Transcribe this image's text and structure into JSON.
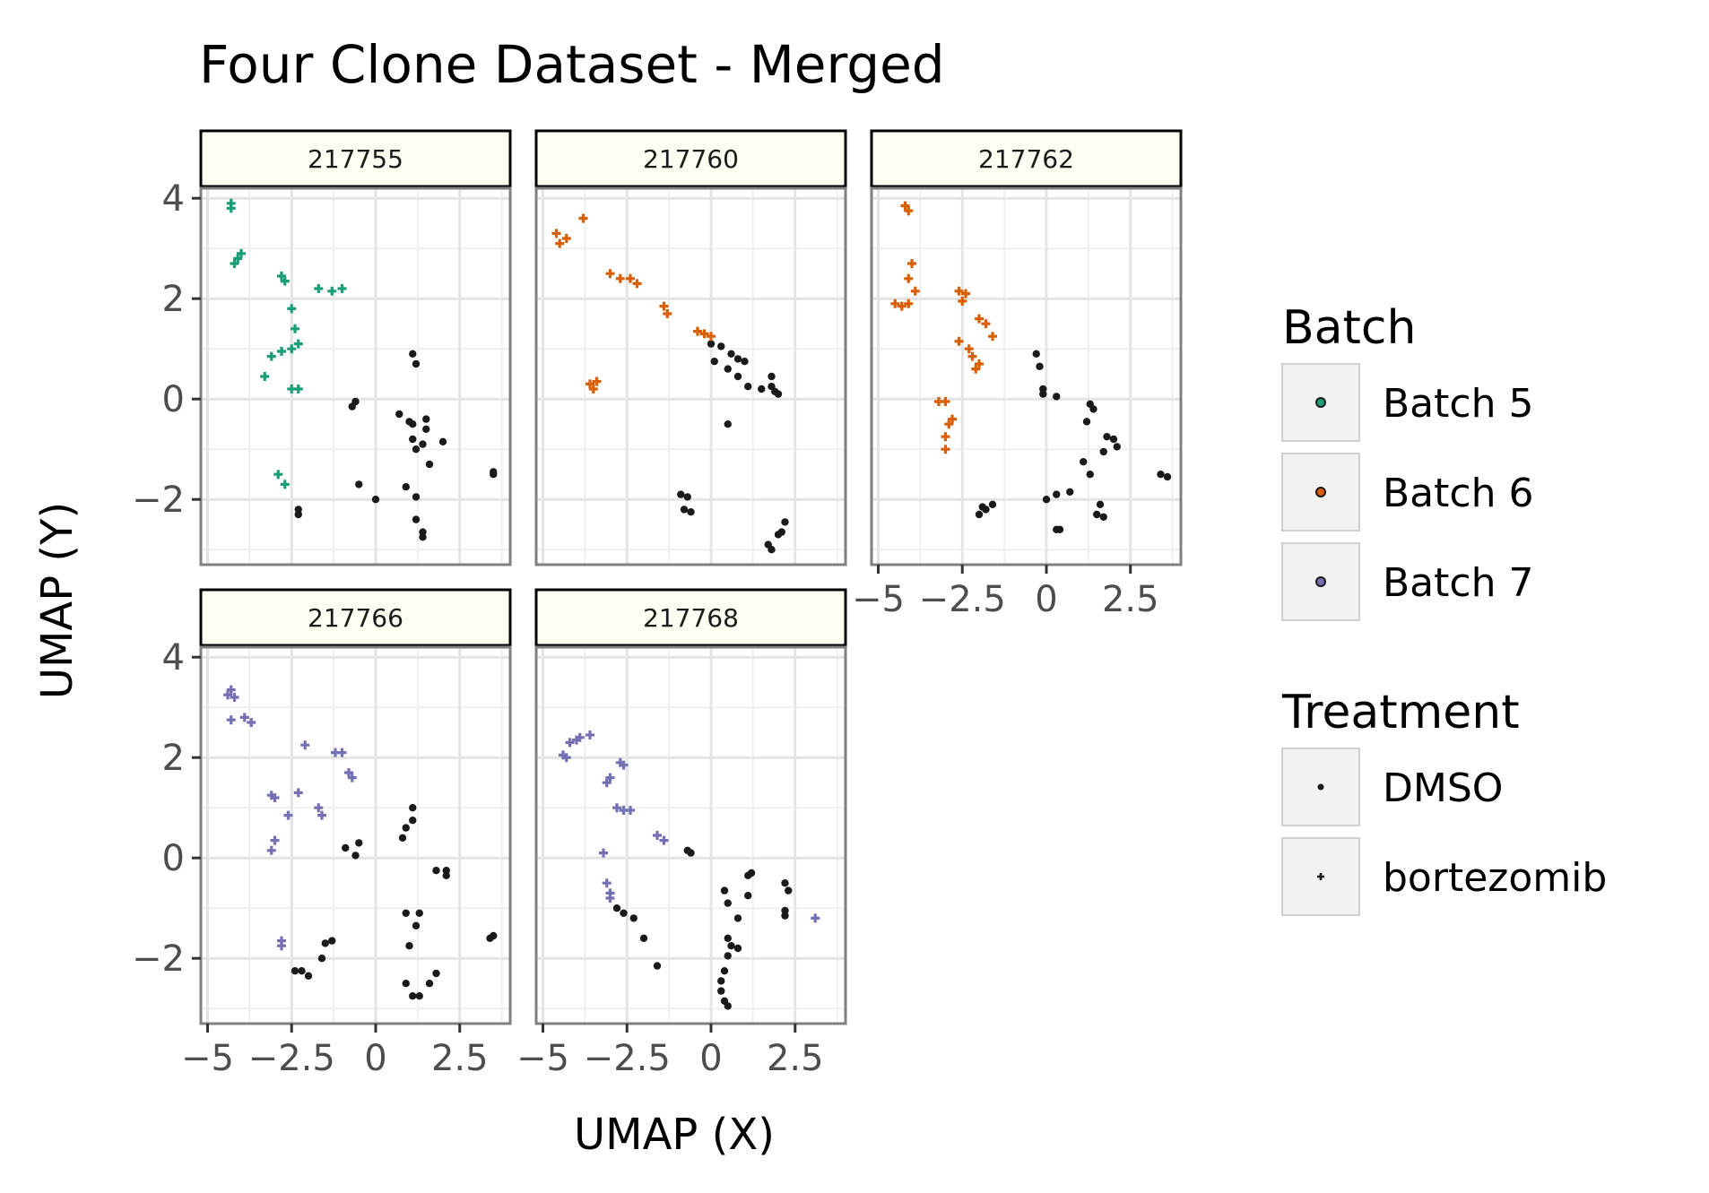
{
  "chart_data": {
    "type": "scatter",
    "title": "Four Clone Dataset - Merged",
    "xlabel": "UMAP (X)",
    "ylabel": "UMAP (Y)",
    "xlim": [
      -5.2,
      4.0
    ],
    "ylim": [
      -3.3,
      4.2
    ],
    "x_ticks": [
      -5,
      -2.5,
      0,
      2.5
    ],
    "x_tick_labels": [
      "−5",
      "−2.5",
      "0",
      "2.5"
    ],
    "y_ticks": [
      -2,
      0,
      2,
      4
    ],
    "y_tick_labels": [
      "−2",
      "0",
      "2",
      "4"
    ],
    "grid": true,
    "legend_placement": "right",
    "legends": {
      "batch": {
        "title": "Batch",
        "items": [
          {
            "label": "Batch 5",
            "color": "#1b9e77"
          },
          {
            "label": "Batch 6",
            "color": "#d95f02"
          },
          {
            "label": "Batch 7",
            "color": "#7570b3"
          }
        ]
      },
      "treatment": {
        "title": "Treatment",
        "items": [
          {
            "label": "DMSO",
            "shape": "dot"
          },
          {
            "label": "bortezomib",
            "shape": "plus"
          }
        ]
      }
    },
    "dmso_color": "#1a1a1a",
    "panels": [
      {
        "label": "217755",
        "batch_color": "#1b9e77",
        "bortezomib": [
          [
            -4.3,
            3.9
          ],
          [
            -4.3,
            3.8
          ],
          [
            -4.0,
            2.9
          ],
          [
            -4.1,
            2.8
          ],
          [
            -4.2,
            2.7
          ],
          [
            -2.8,
            2.45
          ],
          [
            -2.7,
            2.35
          ],
          [
            -2.5,
            1.8
          ],
          [
            -1.7,
            2.2
          ],
          [
            -1.3,
            2.15
          ],
          [
            -1.0,
            2.2
          ],
          [
            -2.4,
            1.4
          ],
          [
            -2.3,
            1.1
          ],
          [
            -2.5,
            1.0
          ],
          [
            -2.8,
            0.95
          ],
          [
            -3.1,
            0.85
          ],
          [
            -3.3,
            0.45
          ],
          [
            -2.5,
            0.2
          ],
          [
            -2.3,
            0.2
          ],
          [
            -2.9,
            -1.5
          ],
          [
            -2.7,
            -1.7
          ]
        ],
        "dmso": [
          [
            -0.7,
            -0.15
          ],
          [
            -0.6,
            -0.05
          ],
          [
            0.7,
            -0.3
          ],
          [
            1.0,
            -0.45
          ],
          [
            1.1,
            -0.5
          ],
          [
            1.5,
            -0.4
          ],
          [
            1.5,
            -0.6
          ],
          [
            1.1,
            -0.8
          ],
          [
            2.0,
            -0.85
          ],
          [
            1.2,
            -1.0
          ],
          [
            1.4,
            -0.9
          ],
          [
            1.6,
            -1.3
          ],
          [
            0.9,
            -1.75
          ],
          [
            1.2,
            -1.95
          ],
          [
            1.2,
            -2.4
          ],
          [
            1.4,
            -2.65
          ],
          [
            1.4,
            -2.75
          ],
          [
            -0.5,
            -1.7
          ],
          [
            0.0,
            -2.0
          ],
          [
            -2.3,
            -2.2
          ],
          [
            -2.3,
            -2.3
          ],
          [
            1.1,
            0.9
          ],
          [
            1.2,
            0.7
          ],
          [
            3.5,
            -1.5
          ],
          [
            3.5,
            -1.45
          ]
        ]
      },
      {
        "label": "217760",
        "batch_color": "#d95f02",
        "bortezomib": [
          [
            -4.6,
            3.3
          ],
          [
            -4.5,
            3.1
          ],
          [
            -4.3,
            3.2
          ],
          [
            -3.8,
            3.6
          ],
          [
            -3.0,
            2.5
          ],
          [
            -2.7,
            2.4
          ],
          [
            -2.4,
            2.4
          ],
          [
            -2.2,
            2.3
          ],
          [
            -1.4,
            1.85
          ],
          [
            -1.3,
            1.7
          ],
          [
            -0.4,
            1.35
          ],
          [
            -0.2,
            1.3
          ],
          [
            0.0,
            1.25
          ],
          [
            -3.6,
            0.3
          ],
          [
            -3.4,
            0.35
          ],
          [
            -3.5,
            0.2
          ]
        ],
        "dmso": [
          [
            0.0,
            1.1
          ],
          [
            0.3,
            1.05
          ],
          [
            0.6,
            0.9
          ],
          [
            0.8,
            0.8
          ],
          [
            1.0,
            0.75
          ],
          [
            0.1,
            0.75
          ],
          [
            0.5,
            0.6
          ],
          [
            0.8,
            0.45
          ],
          [
            1.1,
            0.25
          ],
          [
            1.5,
            0.2
          ],
          [
            1.8,
            0.45
          ],
          [
            1.8,
            0.25
          ],
          [
            1.9,
            0.15
          ],
          [
            2.0,
            0.1
          ],
          [
            0.5,
            -0.5
          ],
          [
            -0.9,
            -1.9
          ],
          [
            -0.7,
            -1.95
          ],
          [
            -0.8,
            -2.2
          ],
          [
            -0.6,
            -2.25
          ],
          [
            1.7,
            -2.9
          ],
          [
            1.8,
            -3.0
          ],
          [
            2.1,
            -2.65
          ],
          [
            2.2,
            -2.45
          ],
          [
            2.0,
            -2.7
          ]
        ]
      },
      {
        "label": "217762",
        "batch_color": "#d95f02",
        "bortezomib": [
          [
            -4.2,
            3.85
          ],
          [
            -4.1,
            3.75
          ],
          [
            -4.0,
            2.7
          ],
          [
            -4.1,
            2.4
          ],
          [
            -3.9,
            2.15
          ],
          [
            -4.1,
            1.9
          ],
          [
            -4.3,
            1.85
          ],
          [
            -4.5,
            1.9
          ],
          [
            -2.6,
            2.15
          ],
          [
            -2.4,
            2.1
          ],
          [
            -2.5,
            1.95
          ],
          [
            -2.0,
            1.6
          ],
          [
            -1.8,
            1.5
          ],
          [
            -1.6,
            1.25
          ],
          [
            -2.6,
            1.15
          ],
          [
            -2.3,
            1.0
          ],
          [
            -2.2,
            0.85
          ],
          [
            -2.0,
            0.7
          ],
          [
            -2.1,
            0.6
          ],
          [
            -3.2,
            -0.05
          ],
          [
            -3.0,
            -0.05
          ],
          [
            -2.8,
            -0.4
          ],
          [
            -2.9,
            -0.5
          ],
          [
            -3.0,
            -0.75
          ],
          [
            -3.0,
            -1.0
          ]
        ],
        "dmso": [
          [
            -0.3,
            0.9
          ],
          [
            -0.2,
            0.65
          ],
          [
            -0.1,
            0.2
          ],
          [
            -0.1,
            0.1
          ],
          [
            0.3,
            0.05
          ],
          [
            1.3,
            -0.1
          ],
          [
            1.4,
            -0.2
          ],
          [
            1.2,
            -0.45
          ],
          [
            1.8,
            -0.75
          ],
          [
            2.0,
            -0.8
          ],
          [
            2.1,
            -0.95
          ],
          [
            1.7,
            -1.05
          ],
          [
            1.1,
            -1.25
          ],
          [
            1.3,
            -1.5
          ],
          [
            0.7,
            -1.85
          ],
          [
            0.3,
            -1.9
          ],
          [
            0.0,
            -2.0
          ],
          [
            1.6,
            -2.1
          ],
          [
            1.5,
            -2.3
          ],
          [
            1.7,
            -2.35
          ],
          [
            0.3,
            -2.6
          ],
          [
            0.4,
            -2.6
          ],
          [
            -1.9,
            -2.15
          ],
          [
            -2.0,
            -2.3
          ],
          [
            -1.8,
            -2.2
          ],
          [
            -1.6,
            -2.1
          ],
          [
            3.4,
            -1.5
          ],
          [
            3.6,
            -1.55
          ]
        ]
      },
      {
        "label": "217766",
        "batch_color": "#7570b3",
        "bortezomib": [
          [
            -4.3,
            3.35
          ],
          [
            -4.2,
            3.2
          ],
          [
            -4.4,
            3.25
          ],
          [
            -4.3,
            2.75
          ],
          [
            -3.9,
            2.8
          ],
          [
            -3.7,
            2.7
          ],
          [
            -2.1,
            2.25
          ],
          [
            -1.2,
            2.1
          ],
          [
            -1.0,
            2.1
          ],
          [
            -0.8,
            1.7
          ],
          [
            -0.7,
            1.6
          ],
          [
            -3.1,
            1.25
          ],
          [
            -3.0,
            1.2
          ],
          [
            -2.3,
            1.3
          ],
          [
            -2.6,
            0.85
          ],
          [
            -1.7,
            1.0
          ],
          [
            -1.6,
            0.85
          ],
          [
            -3.0,
            0.35
          ],
          [
            -3.1,
            0.15
          ],
          [
            -2.8,
            -1.65
          ],
          [
            -2.8,
            -1.75
          ]
        ],
        "dmso": [
          [
            -0.9,
            0.2
          ],
          [
            -0.6,
            0.05
          ],
          [
            -0.5,
            0.3
          ],
          [
            1.1,
            1.0
          ],
          [
            1.1,
            0.75
          ],
          [
            0.9,
            0.6
          ],
          [
            0.8,
            0.4
          ],
          [
            0.9,
            -1.1
          ],
          [
            1.3,
            -1.1
          ],
          [
            1.2,
            -1.35
          ],
          [
            1.0,
            -1.75
          ],
          [
            1.8,
            -0.25
          ],
          [
            2.1,
            -0.25
          ],
          [
            2.1,
            -0.35
          ],
          [
            0.9,
            -2.5
          ],
          [
            1.1,
            -2.75
          ],
          [
            1.3,
            -2.75
          ],
          [
            1.6,
            -2.5
          ],
          [
            1.8,
            -2.3
          ],
          [
            -2.2,
            -2.25
          ],
          [
            -2.4,
            -2.25
          ],
          [
            -2.0,
            -2.35
          ],
          [
            -1.5,
            -1.7
          ],
          [
            -1.3,
            -1.65
          ],
          [
            -1.6,
            -2.0
          ],
          [
            3.4,
            -1.6
          ],
          [
            3.5,
            -1.55
          ]
        ]
      },
      {
        "label": "217768",
        "batch_color": "#7570b3",
        "bortezomib": [
          [
            -4.4,
            2.05
          ],
          [
            -4.3,
            2.0
          ],
          [
            -4.2,
            2.3
          ],
          [
            -4.0,
            2.35
          ],
          [
            -3.9,
            2.4
          ],
          [
            -3.6,
            2.45
          ],
          [
            -2.7,
            1.9
          ],
          [
            -2.6,
            1.85
          ],
          [
            -3.0,
            1.6
          ],
          [
            -3.1,
            1.5
          ],
          [
            -2.8,
            1.0
          ],
          [
            -2.6,
            0.95
          ],
          [
            -2.4,
            0.95
          ],
          [
            -1.6,
            0.45
          ],
          [
            -1.4,
            0.35
          ],
          [
            -3.2,
            0.1
          ],
          [
            -3.1,
            -0.5
          ],
          [
            -3.0,
            -0.7
          ],
          [
            -3.0,
            -0.8
          ],
          [
            3.1,
            -1.2
          ]
        ],
        "dmso": [
          [
            -0.7,
            0.15
          ],
          [
            -0.6,
            0.1
          ],
          [
            -2.8,
            -1.0
          ],
          [
            -2.6,
            -1.1
          ],
          [
            -2.3,
            -1.2
          ],
          [
            -2.0,
            -1.6
          ],
          [
            -1.6,
            -2.15
          ],
          [
            0.4,
            -0.65
          ],
          [
            0.5,
            -0.9
          ],
          [
            1.1,
            -0.35
          ],
          [
            1.2,
            -0.3
          ],
          [
            1.1,
            -0.75
          ],
          [
            0.8,
            -1.2
          ],
          [
            2.2,
            -0.5
          ],
          [
            2.3,
            -0.65
          ],
          [
            2.2,
            -1.05
          ],
          [
            2.2,
            -1.15
          ],
          [
            0.5,
            -1.6
          ],
          [
            0.6,
            -1.75
          ],
          [
            0.8,
            -1.8
          ],
          [
            0.5,
            -1.95
          ],
          [
            0.4,
            -2.25
          ],
          [
            0.3,
            -2.45
          ],
          [
            0.3,
            -2.65
          ],
          [
            0.4,
            -2.85
          ],
          [
            0.5,
            -2.95
          ]
        ]
      }
    ]
  }
}
